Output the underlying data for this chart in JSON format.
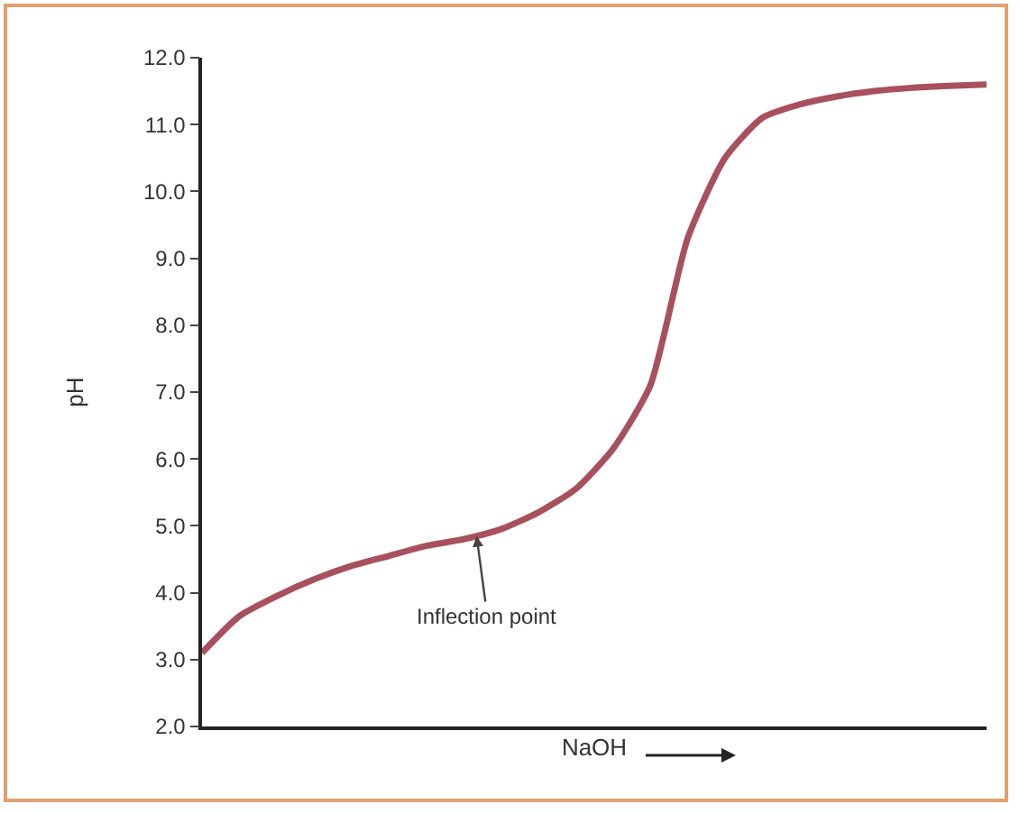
{
  "chart_data": {
    "type": "line",
    "xlabel": "NaOH",
    "ylabel": "pH",
    "categories": [
      null,
      null,
      null,
      null,
      null,
      null,
      null,
      null,
      null,
      null,
      null,
      null,
      null,
      null,
      null,
      null,
      null,
      null,
      null,
      null,
      null,
      null
    ],
    "series": [
      {
        "color": "#a8505c",
        "values": [
          3.1,
          3.65,
          3.95,
          4.2,
          4.4,
          4.55,
          4.7,
          4.8,
          4.95,
          5.2,
          5.55,
          6.15,
          7.1,
          9.3,
          10.5,
          11.1,
          11.3,
          11.42,
          11.5,
          11.55,
          11.58,
          11.6
        ]
      }
    ],
    "ylim": [
      2,
      12
    ],
    "yticks": [
      {
        "value": 2,
        "label": "2.0"
      },
      {
        "value": 3,
        "label": "3.0"
      },
      {
        "value": 4,
        "label": "4.0"
      },
      {
        "value": 5,
        "label": "5.0"
      },
      {
        "value": 6,
        "label": "6.0"
      },
      {
        "value": 7,
        "label": "7.0"
      },
      {
        "value": 8,
        "label": "8.0"
      },
      {
        "value": 9,
        "label": "9.0"
      },
      {
        "value": 10,
        "label": "10.0"
      },
      {
        "value": 11,
        "label": "11.0"
      },
      {
        "value": 12,
        "label": "12.0"
      }
    ],
    "annotations": [
      "Inflection point"
    ],
    "tick_labels": "y",
    "grid": false,
    "marker": "none",
    "line_style": "solid"
  }
}
